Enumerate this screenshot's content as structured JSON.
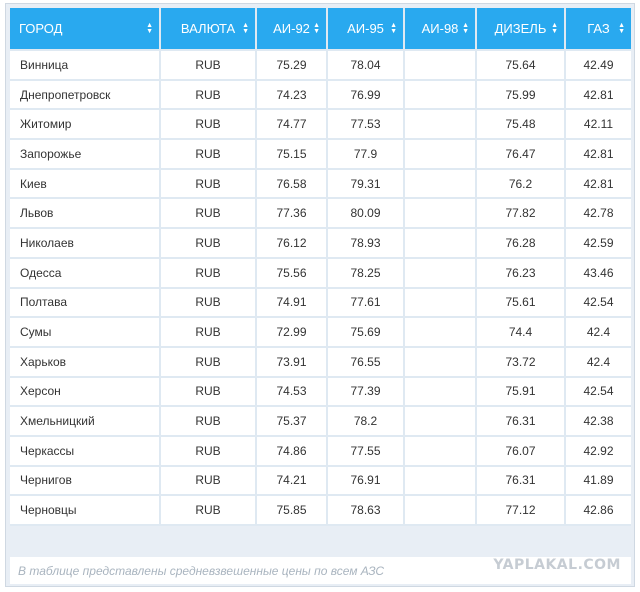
{
  "table": {
    "headers": [
      {
        "label": "ГОРОД",
        "sort": "both"
      },
      {
        "label": "ВАЛЮТА",
        "sort": "both"
      },
      {
        "label": "АИ-92",
        "sort": "both"
      },
      {
        "label": "АИ-95",
        "sort": "both"
      },
      {
        "label": "АИ-98",
        "sort": "both"
      },
      {
        "label": "ДИЗЕЛЬ",
        "sort": "both"
      },
      {
        "label": "ГАЗ",
        "sort": "both"
      }
    ],
    "rows": [
      {
        "city": "Винница",
        "currency": "RUB",
        "ai92": "75.29",
        "ai95": "78.04",
        "ai98": "",
        "diesel": "75.64",
        "gas": "42.49"
      },
      {
        "city": "Днепропетровск",
        "currency": "RUB",
        "ai92": "74.23",
        "ai95": "76.99",
        "ai98": "",
        "diesel": "75.99",
        "gas": "42.81"
      },
      {
        "city": "Житомир",
        "currency": "RUB",
        "ai92": "74.77",
        "ai95": "77.53",
        "ai98": "",
        "diesel": "75.48",
        "gas": "42.11"
      },
      {
        "city": "Запорожье",
        "currency": "RUB",
        "ai92": "75.15",
        "ai95": "77.9",
        "ai98": "",
        "diesel": "76.47",
        "gas": "42.81"
      },
      {
        "city": "Киев",
        "currency": "RUB",
        "ai92": "76.58",
        "ai95": "79.31",
        "ai98": "",
        "diesel": "76.2",
        "gas": "42.81"
      },
      {
        "city": "Львов",
        "currency": "RUB",
        "ai92": "77.36",
        "ai95": "80.09",
        "ai98": "",
        "diesel": "77.82",
        "gas": "42.78"
      },
      {
        "city": "Николаев",
        "currency": "RUB",
        "ai92": "76.12",
        "ai95": "78.93",
        "ai98": "",
        "diesel": "76.28",
        "gas": "42.59"
      },
      {
        "city": "Одесса",
        "currency": "RUB",
        "ai92": "75.56",
        "ai95": "78.25",
        "ai98": "",
        "diesel": "76.23",
        "gas": "43.46"
      },
      {
        "city": "Полтава",
        "currency": "RUB",
        "ai92": "74.91",
        "ai95": "77.61",
        "ai98": "",
        "diesel": "75.61",
        "gas": "42.54"
      },
      {
        "city": "Сумы",
        "currency": "RUB",
        "ai92": "72.99",
        "ai95": "75.69",
        "ai98": "",
        "diesel": "74.4",
        "gas": "42.4"
      },
      {
        "city": "Харьков",
        "currency": "RUB",
        "ai92": "73.91",
        "ai95": "76.55",
        "ai98": "",
        "diesel": "73.72",
        "gas": "42.4"
      },
      {
        "city": "Херсон",
        "currency": "RUB",
        "ai92": "74.53",
        "ai95": "77.39",
        "ai98": "",
        "diesel": "75.91",
        "gas": "42.54"
      },
      {
        "city": "Хмельницкий",
        "currency": "RUB",
        "ai92": "75.37",
        "ai95": "78.2",
        "ai98": "",
        "diesel": "76.31",
        "gas": "42.38"
      },
      {
        "city": "Черкассы",
        "currency": "RUB",
        "ai92": "74.86",
        "ai95": "77.55",
        "ai98": "",
        "diesel": "76.07",
        "gas": "42.92"
      },
      {
        "city": "Чернигов",
        "currency": "RUB",
        "ai92": "74.21",
        "ai95": "76.91",
        "ai98": "",
        "diesel": "76.31",
        "gas": "41.89"
      },
      {
        "city": "Черновцы",
        "currency": "RUB",
        "ai92": "75.85",
        "ai95": "78.63",
        "ai98": "",
        "diesel": "77.12",
        "gas": "42.86"
      }
    ]
  },
  "footer": {
    "note": "В таблице представлены средневзвешенные цены по всем АЗС",
    "watermark": "YAPLAKAL.COM"
  },
  "colors": {
    "header_bg": "#29a9ef",
    "frame_bg": "#e8eef5",
    "cell_bg": "#ffffff"
  }
}
